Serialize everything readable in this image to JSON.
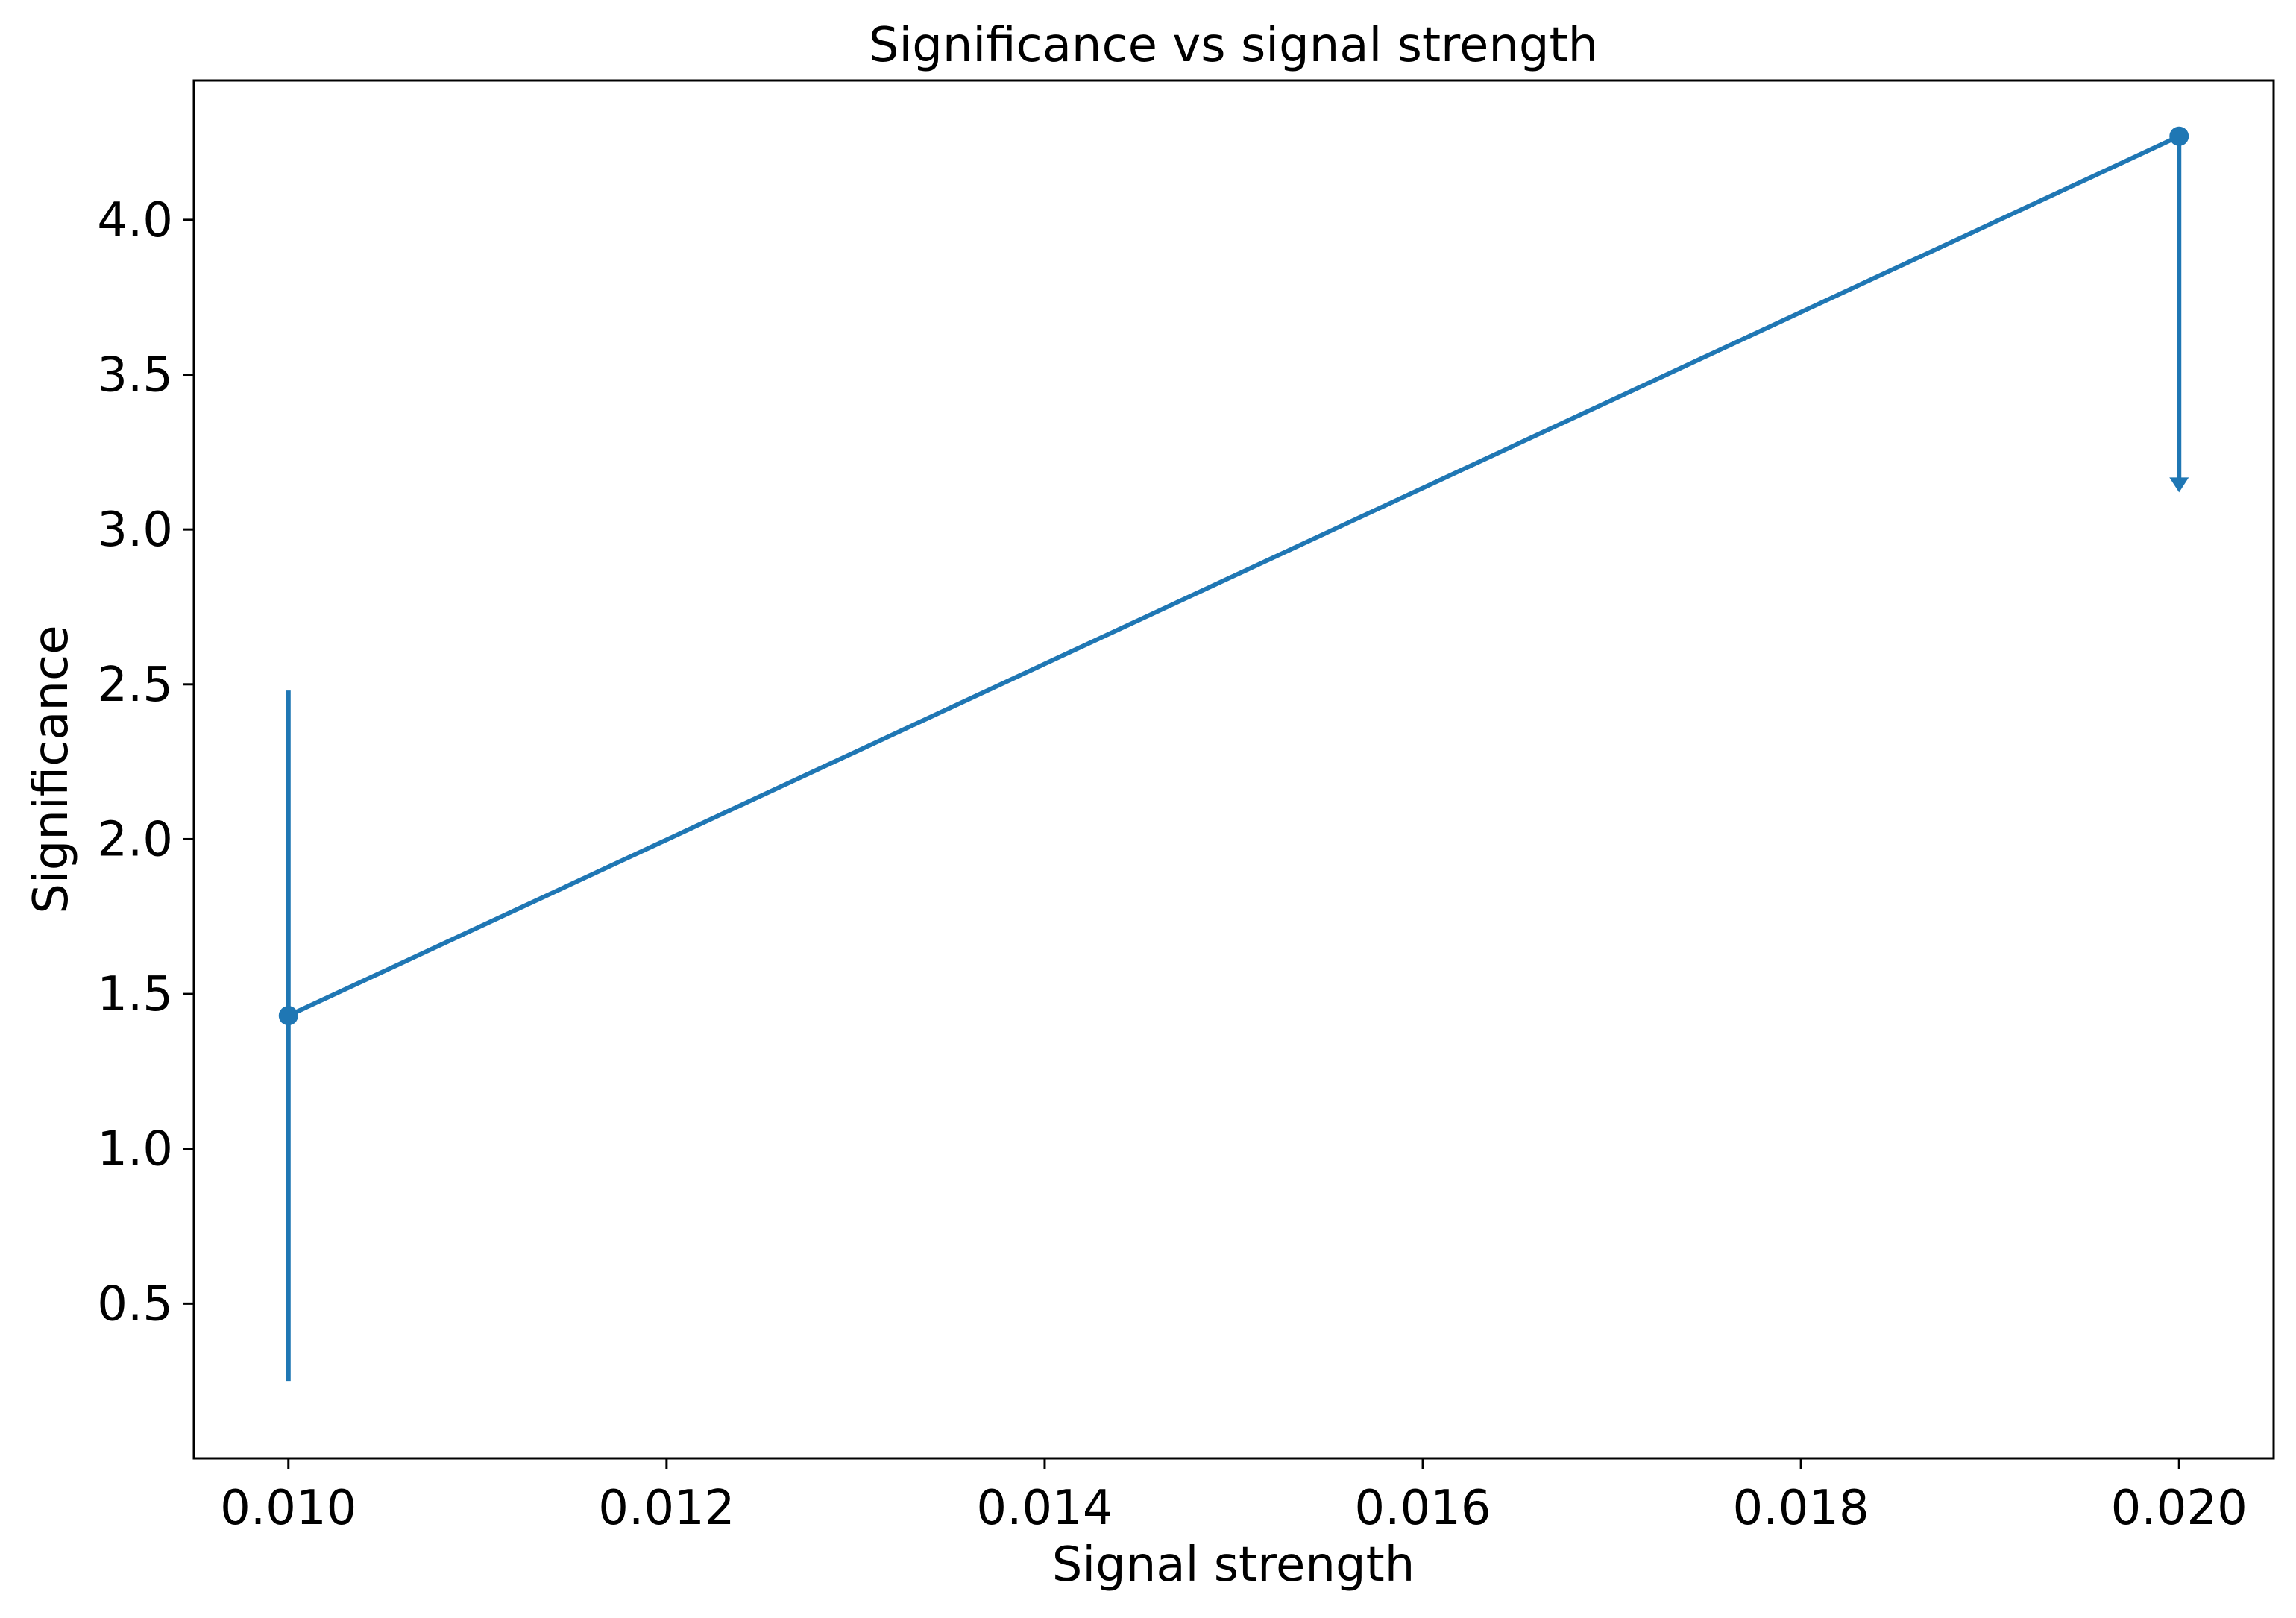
{
  "chart_data": {
    "type": "line",
    "title": "Significance vs signal strength",
    "xlabel": "Signal strength",
    "ylabel": "Significance",
    "xlim": [
      0.0095,
      0.0205
    ],
    "ylim": [
      0.0,
      4.45
    ],
    "x_ticks": [
      0.01,
      0.012,
      0.014,
      0.016,
      0.018,
      0.02
    ],
    "x_tick_labels": [
      "0.010",
      "0.012",
      "0.014",
      "0.016",
      "0.018",
      "0.020"
    ],
    "y_ticks": [
      0.5,
      1.0,
      1.5,
      2.0,
      2.5,
      3.0,
      3.5,
      4.0
    ],
    "y_tick_labels": [
      "0.5",
      "1.0",
      "1.5",
      "2.0",
      "2.5",
      "3.0",
      "3.5",
      "4.0"
    ],
    "grid": false,
    "series": [
      {
        "color": "#1f77b4",
        "points": [
          {
            "x": 0.01,
            "y": 1.43,
            "err_low": 0.25,
            "err_high": 2.48,
            "upper_limit": false
          },
          {
            "x": 0.02,
            "y": 4.27,
            "err_low": 3.12,
            "err_high": 4.27,
            "upper_limit": true
          }
        ]
      }
    ]
  }
}
